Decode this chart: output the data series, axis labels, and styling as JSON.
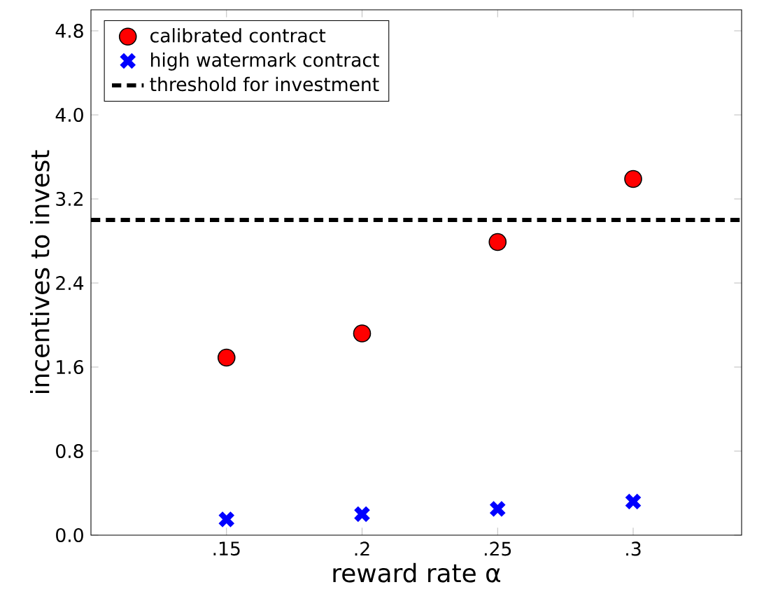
{
  "chart_data": {
    "type": "scatter",
    "xlabel": "reward rate α",
    "ylabel": "incentives to invest",
    "xlim": [
      0.1,
      0.34
    ],
    "ylim": [
      0,
      5
    ],
    "xticks": [
      {
        "value": 0.15,
        "label": ".15"
      },
      {
        "value": 0.2,
        "label": ".2"
      },
      {
        "value": 0.25,
        "label": ".25"
      },
      {
        "value": 0.3,
        "label": ".3"
      }
    ],
    "yticks": [
      {
        "value": 0,
        "label": "0.0"
      },
      {
        "value": 0.8,
        "label": "0.8"
      },
      {
        "value": 1.6,
        "label": "1.6"
      },
      {
        "value": 2.4,
        "label": "2.4"
      },
      {
        "value": 3.2,
        "label": "3.2"
      },
      {
        "value": 4.0,
        "label": "4.0"
      },
      {
        "value": 4.8,
        "label": "4.8"
      }
    ],
    "x": [
      0.15,
      0.2,
      0.25,
      0.3
    ],
    "series": [
      {
        "name": "calibrated contract",
        "color": "#ff0000",
        "marker": "circle",
        "values": [
          1.69,
          1.92,
          2.79,
          3.39
        ]
      },
      {
        "name": "high watermark contract",
        "color": "#0000ff",
        "marker": "cross",
        "values": [
          0.15,
          0.2,
          0.25,
          0.32
        ]
      }
    ],
    "ref_lines": [
      {
        "axis": "y",
        "value": 3.0,
        "label": "threshold for investment",
        "color": "#000000",
        "line_style": "dashed"
      }
    ],
    "legend": "top left",
    "grid": false
  }
}
